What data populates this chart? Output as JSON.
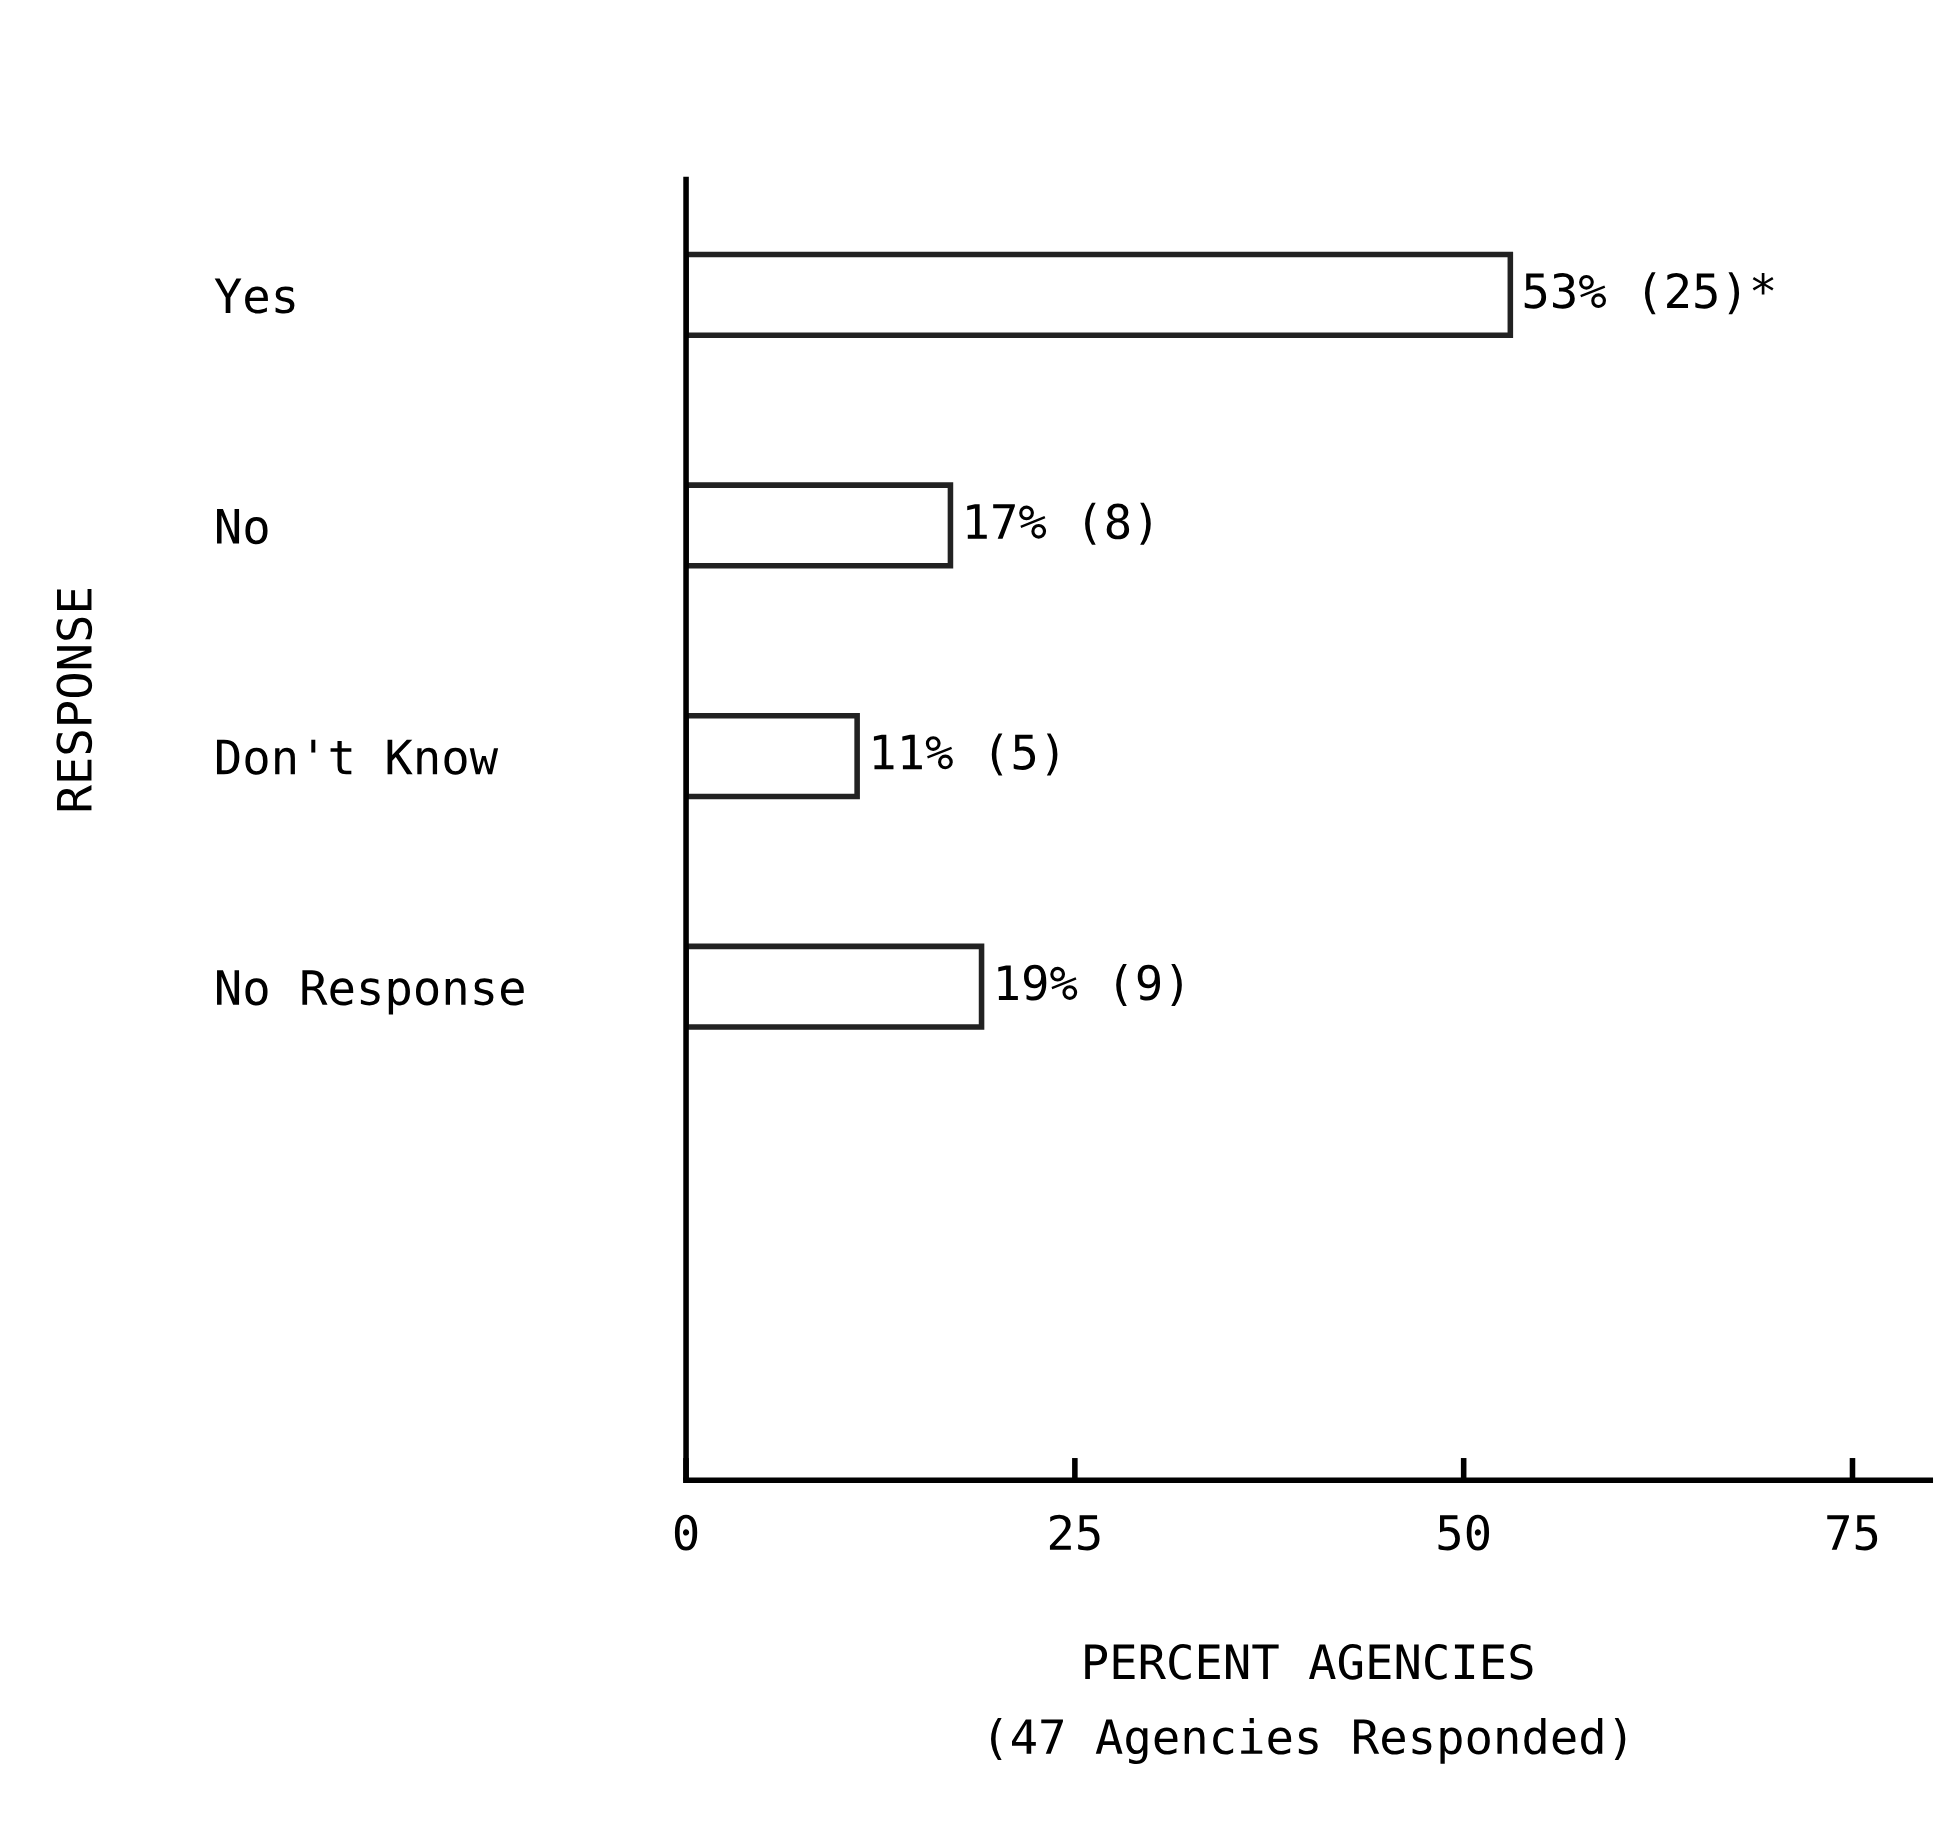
{
  "chart_data": {
    "type": "bar",
    "orientation": "horizontal",
    "ylabel": "RESPONSE",
    "xlabel": "PERCENT AGENCIES\n(47 Agencies Responded)",
    "categories": [
      "Yes",
      "No",
      "Don't Know",
      "No Response"
    ],
    "values": [
      53,
      17,
      11,
      19
    ],
    "value_labels": [
      "53% (25)*",
      "17% (8)",
      "11% (5)",
      "19% (9)"
    ],
    "color": "#ffffff",
    "xlim": [
      0,
      80
    ],
    "xticks": [
      0,
      25,
      50,
      75
    ],
    "grid": false
  }
}
